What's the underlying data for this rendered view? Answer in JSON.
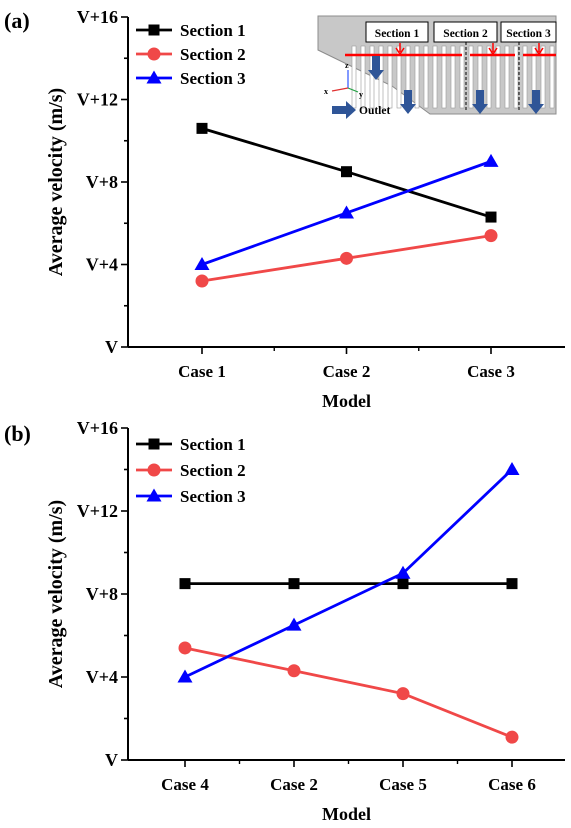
{
  "figure": {
    "panel_a_label": "(a)",
    "panel_b_label": "(b)"
  },
  "inset": {
    "section_labels": [
      "Section 1",
      "Section 2",
      "Section 3"
    ],
    "outlet_label": "Outlet",
    "axis_labels": {
      "z": "z",
      "y": "y",
      "x": "x"
    }
  },
  "colors": {
    "section_1": "#000000",
    "section_2": "#f04848",
    "section_3": "#0000ff",
    "inset_flow_arrow": "#2f5597",
    "inset_cut_line": "#ff0000",
    "inset_body": "#c8c8c8"
  },
  "chart_data": [
    {
      "type": "line",
      "panel": "(a)",
      "xlabel": "Model",
      "ylabel": "Average velocity (m/s)",
      "categories": [
        "Case 1",
        "Case 2",
        "Case 3"
      ],
      "y_ticks": [
        "V",
        "V+4",
        "V+8",
        "V+12",
        "V+16"
      ],
      "ylim": [
        0,
        16
      ],
      "legend_position": "top-left",
      "series": [
        {
          "name": "Section 1",
          "marker": "square",
          "color": "#000000",
          "values": [
            10.6,
            8.5,
            6.3
          ]
        },
        {
          "name": "Section 2",
          "marker": "circle",
          "color": "#f04848",
          "values": [
            3.2,
            4.3,
            5.4
          ]
        },
        {
          "name": "Section 3",
          "marker": "triangle",
          "color": "#0000ff",
          "values": [
            4.0,
            6.5,
            9.0
          ]
        }
      ]
    },
    {
      "type": "line",
      "panel": "(b)",
      "xlabel": "Model",
      "ylabel": "Average velocity (m/s)",
      "categories": [
        "Case 4",
        "Case 2",
        "Case 5",
        "Case 6"
      ],
      "y_ticks": [
        "V",
        "V+4",
        "V+8",
        "V+12",
        "V+16"
      ],
      "ylim": [
        0,
        16
      ],
      "legend_position": "top-left",
      "series": [
        {
          "name": "Section 1",
          "marker": "square",
          "color": "#000000",
          "values": [
            8.5,
            8.5,
            8.5,
            8.5
          ]
        },
        {
          "name": "Section 2",
          "marker": "circle",
          "color": "#f04848",
          "values": [
            5.4,
            4.3,
            3.2,
            1.1
          ]
        },
        {
          "name": "Section 3",
          "marker": "triangle",
          "color": "#0000ff",
          "values": [
            4.0,
            6.5,
            9.0,
            14.0
          ]
        }
      ]
    }
  ]
}
